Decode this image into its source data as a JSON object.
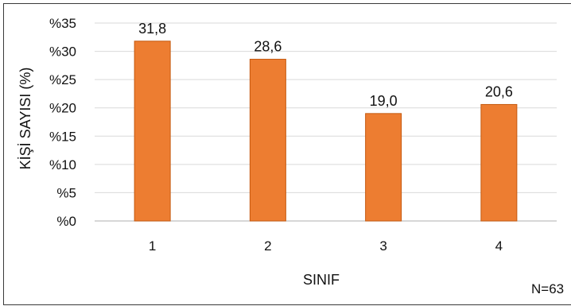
{
  "chart_data": {
    "type": "bar",
    "categories": [
      "1",
      "2",
      "3",
      "4"
    ],
    "values": [
      31.8,
      28.6,
      19.0,
      20.6
    ],
    "value_labels": [
      "31,8",
      "28,6",
      "19,0",
      "20,6"
    ],
    "ylim": [
      0,
      35
    ],
    "y_ticks": [
      0,
      5,
      10,
      15,
      20,
      25,
      30,
      35
    ],
    "y_tick_labels": [
      "%0",
      "%5",
      "%10",
      "%15",
      "%20",
      "%25",
      "%30",
      "%35"
    ],
    "xlabel": "SINIF",
    "ylabel": "KİŞİ SAYISI (%)",
    "grid": true,
    "legend": "none",
    "note": "N=63",
    "colors": {
      "bar": "#ed7d31",
      "bar_edge": "#c55a11",
      "grid": "#d9d9d9",
      "text": "#111111"
    }
  }
}
